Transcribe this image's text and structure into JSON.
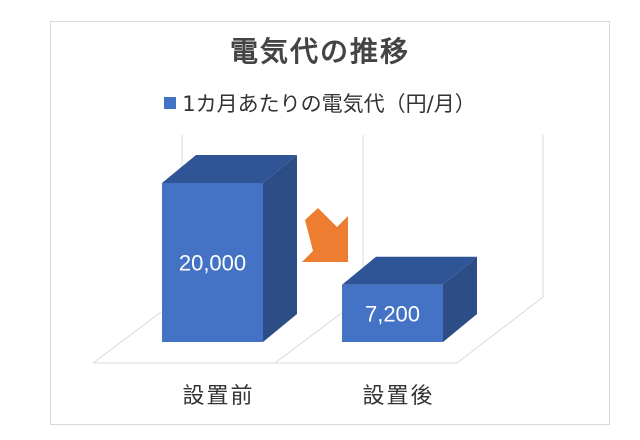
{
  "chart_data": {
    "type": "bar",
    "style": "3d-column",
    "title": "電気代の推移",
    "legend": {
      "position": "top",
      "entries": [
        "1カ月あたりの電気代（円/月）"
      ]
    },
    "categories": [
      "設置前",
      "設置後"
    ],
    "series": [
      {
        "name": "1カ月あたりの電気代（円/月）",
        "values": [
          20000,
          7200
        ]
      }
    ],
    "data_labels": [
      "20,000",
      "7,200"
    ],
    "ylim": [
      0,
      20000
    ],
    "grid": false,
    "annotations": [
      {
        "type": "arrow",
        "direction": "down-right",
        "color": "#ed7d31"
      }
    ],
    "colors": {
      "bar_front": "#4472c4",
      "bar_top": "#2f5597",
      "bar_side": "#2c4d86",
      "arrow": "#ed7d31"
    }
  }
}
